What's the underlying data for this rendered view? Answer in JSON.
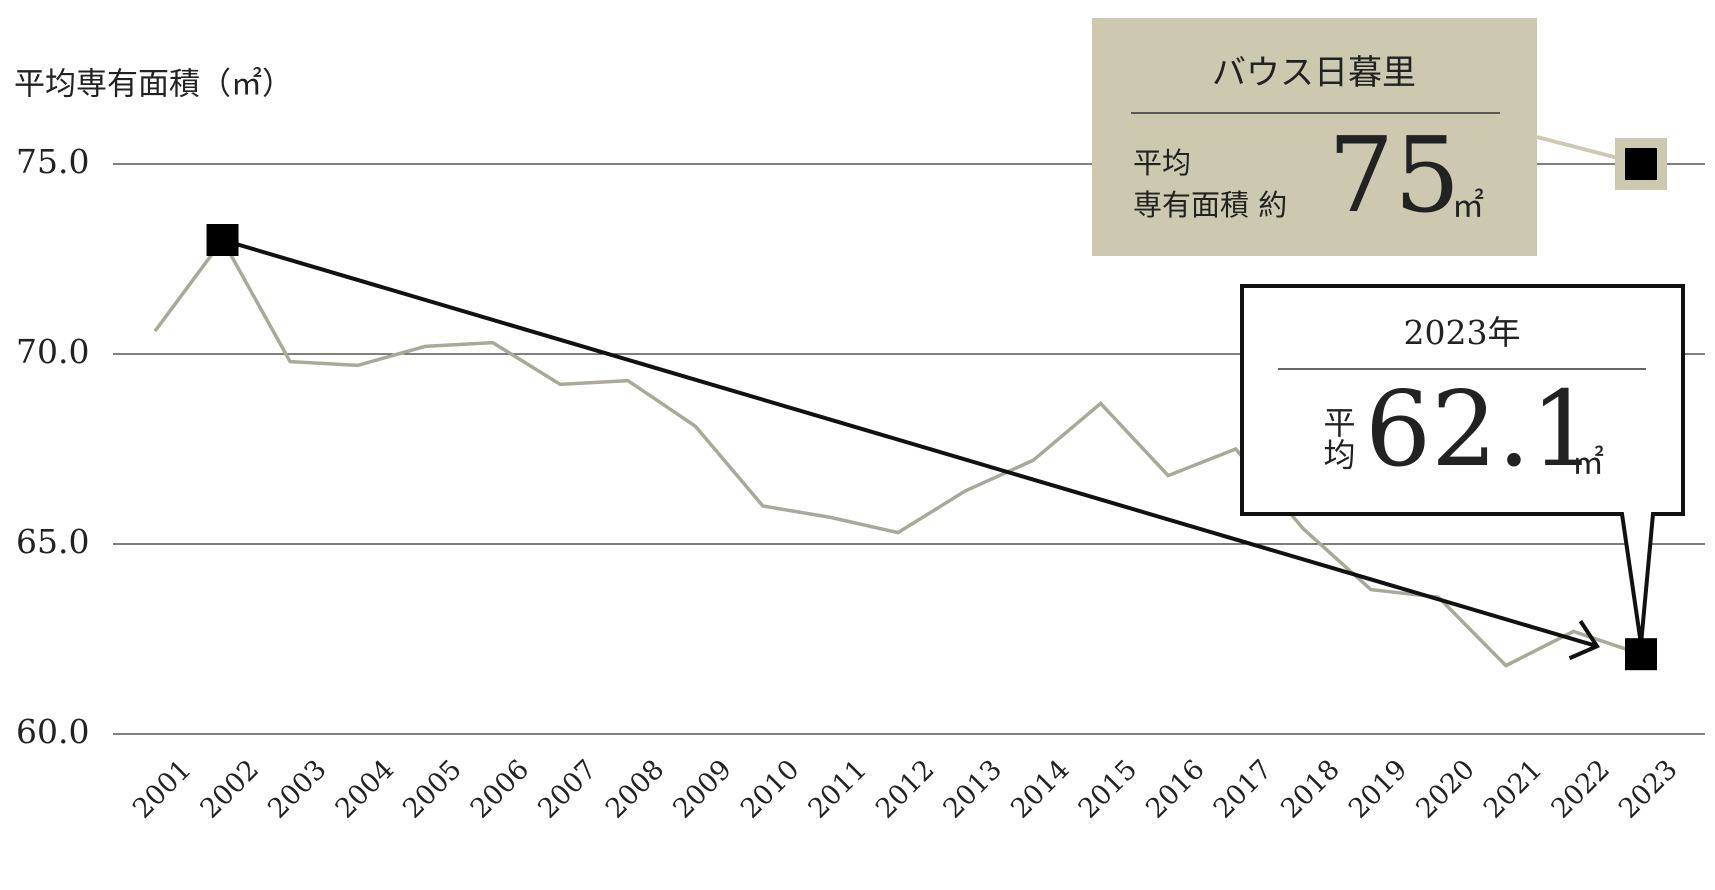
{
  "chart_data": {
    "type": "line",
    "y_label": "平均専有面積（㎡）",
    "categories": [
      "2001",
      "2002",
      "2003",
      "2004",
      "2005",
      "2006",
      "2007",
      "2008",
      "2009",
      "2010",
      "2011",
      "2012",
      "2013",
      "2014",
      "2015",
      "2016",
      "2017",
      "2018",
      "2019",
      "2020",
      "2021",
      "2022",
      "2023"
    ],
    "series": [
      {
        "color": "#a9a89b",
        "values": [
          70.6,
          73.0,
          69.8,
          69.7,
          70.2,
          70.3,
          69.2,
          69.3,
          68.1,
          66.0,
          65.7,
          65.3,
          66.4,
          67.2,
          68.7,
          66.8,
          67.5,
          65.4,
          63.8,
          63.6,
          61.8,
          62.7,
          62.1
        ]
      }
    ],
    "ylim": [
      60,
      75
    ],
    "yticks": [
      {
        "value": 60,
        "label": "60.0"
      },
      {
        "value": 65,
        "label": "65.0"
      },
      {
        "value": 70,
        "label": "70.0"
      },
      {
        "value": 75,
        "label": "75.0"
      }
    ],
    "grid": true,
    "annotations": [
      {
        "title": "バウス日暮里",
        "label": [
          "平均",
          "専有面積 約"
        ],
        "value": 75,
        "unit": "㎡",
        "color": "#cdc9b0"
      },
      {
        "title": "2023年",
        "label": "平均",
        "value": 62.1,
        "unit": "㎡"
      }
    ]
  }
}
